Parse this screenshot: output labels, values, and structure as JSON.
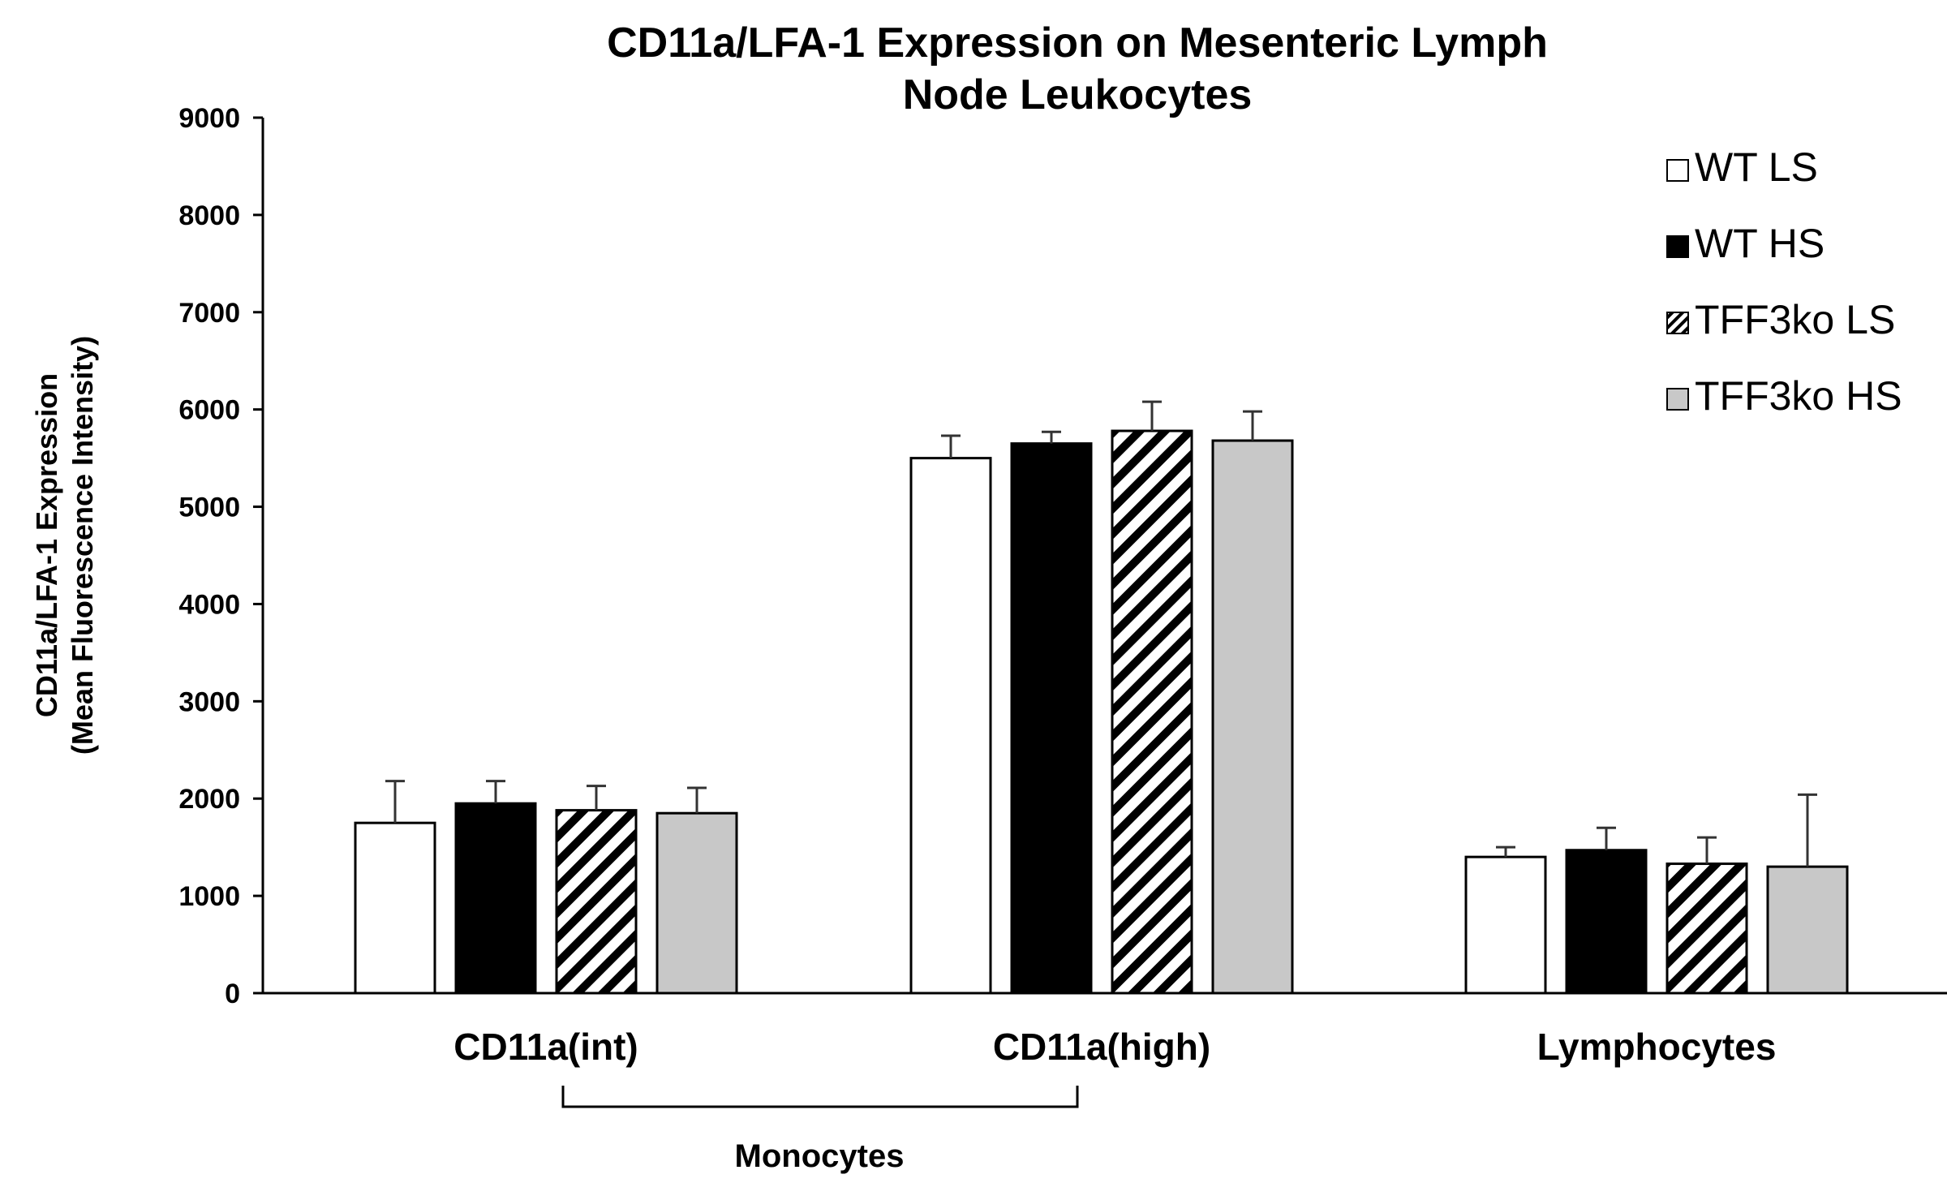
{
  "chart_data": {
    "type": "bar",
    "title_lines": [
      "CD11a/LFA-1 Expression on Mesenteric Lymph",
      "Node Leukocytes"
    ],
    "ylabel_lines": [
      "CD11a/LFA-1 Expression",
      "(Mean Fluorescence Intensity)"
    ],
    "xlabel": "",
    "ylim": [
      0,
      9000
    ],
    "yticks": [
      0,
      1000,
      2000,
      3000,
      4000,
      5000,
      6000,
      7000,
      8000,
      9000
    ],
    "categories": [
      "CD11a(int)",
      "CD11a(high)",
      "Lymphocytes"
    ],
    "series": [
      {
        "name": "WT LS",
        "values": [
          1750,
          5500,
          1400
        ],
        "errors": [
          430,
          230,
          100
        ],
        "fill": "#ffffff",
        "pattern": "none"
      },
      {
        "name": "WT HS",
        "values": [
          1950,
          5650,
          1470
        ],
        "errors": [
          230,
          120,
          230
        ],
        "fill": "#000000",
        "pattern": "none"
      },
      {
        "name": "TFF3ko LS",
        "values": [
          1880,
          5780,
          1330
        ],
        "errors": [
          250,
          300,
          270
        ],
        "fill": "#ffffff",
        "pattern": "diagonal-stripes"
      },
      {
        "name": "TFF3ko HS",
        "values": [
          1850,
          5680,
          1300
        ],
        "errors": [
          260,
          300,
          740
        ],
        "fill": "#c8c8c8",
        "pattern": "none"
      }
    ],
    "group_bracket": {
      "label": "Monocytes",
      "spans_categories": [
        "CD11a(int)",
        "CD11a(high)"
      ]
    },
    "legend_position": "top-right",
    "grid": false
  }
}
